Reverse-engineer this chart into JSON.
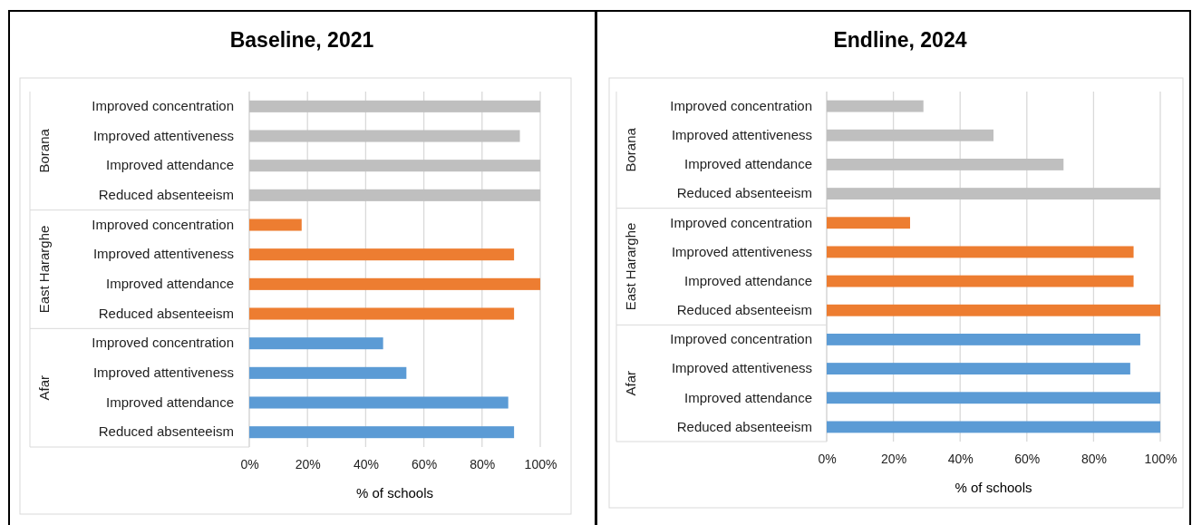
{
  "chart_data": [
    {
      "type": "bar",
      "title": "Baseline, 2021",
      "orientation": "horizontal",
      "xlabel": "% of schools",
      "categories": [
        "Improved concentration",
        "Improved attentiveness",
        "Improved attendance",
        "Reduced absenteeism",
        "Improved concentration",
        "Improved attentiveness",
        "Improved attendance",
        "Reduced absenteeism",
        "Improved concentration",
        "Improved attentiveness",
        "Improved attendance",
        "Reduced absenteeism"
      ],
      "values": [
        100,
        93,
        100,
        100,
        18,
        91,
        100,
        91,
        46,
        54,
        89,
        91
      ],
      "colors": [
        "#bfbfbf",
        "#bfbfbf",
        "#bfbfbf",
        "#bfbfbf",
        "#ed7d31",
        "#ed7d31",
        "#ed7d31",
        "#ed7d31",
        "#5b9bd5",
        "#5b9bd5",
        "#5b9bd5",
        "#5b9bd5"
      ],
      "annotations": [
        "Borana",
        "East Hararghe",
        "Afar"
      ],
      "xlim": [
        0,
        100
      ],
      "xticks": [
        {
          "value": 0,
          "label": "0%"
        },
        {
          "value": 20,
          "label": "20%"
        },
        {
          "value": 40,
          "label": "40%"
        },
        {
          "value": 60,
          "label": "60%"
        },
        {
          "value": 80,
          "label": "80%"
        },
        {
          "value": 100,
          "label": "100%"
        }
      ],
      "grid": "x"
    },
    {
      "type": "bar",
      "title": "Endline, 2024",
      "orientation": "horizontal",
      "xlabel": "% of schools",
      "categories": [
        "Improved concentration",
        "Improved attentiveness",
        "Improved attendance",
        "Reduced absenteeism",
        "Improved concentration",
        "Improved attentiveness",
        "Improved attendance",
        "Reduced absenteeism",
        "Improved concentration",
        "Improved attentiveness",
        "Improved attendance",
        "Reduced absenteeism"
      ],
      "values": [
        29,
        50,
        71,
        100,
        25,
        92,
        92,
        100,
        94,
        91,
        100,
        100
      ],
      "colors": [
        "#bfbfbf",
        "#bfbfbf",
        "#bfbfbf",
        "#bfbfbf",
        "#ed7d31",
        "#ed7d31",
        "#ed7d31",
        "#ed7d31",
        "#5b9bd5",
        "#5b9bd5",
        "#5b9bd5",
        "#5b9bd5"
      ],
      "annotations": [
        "Borana",
        "East Hararghe",
        "Afar"
      ],
      "xlim": [
        0,
        100
      ],
      "xticks": [
        {
          "value": 0,
          "label": "0%"
        },
        {
          "value": 20,
          "label": "20%"
        },
        {
          "value": 40,
          "label": "40%"
        },
        {
          "value": 60,
          "label": "60%"
        },
        {
          "value": 80,
          "label": "80%"
        },
        {
          "value": 100,
          "label": "100%"
        }
      ],
      "grid": "x"
    }
  ]
}
